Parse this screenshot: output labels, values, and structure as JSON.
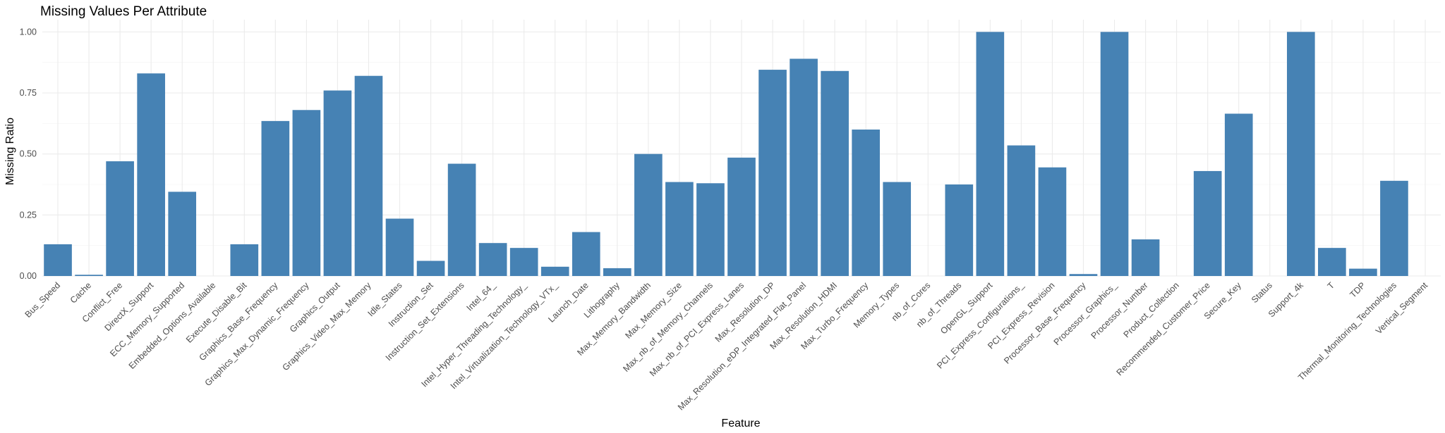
{
  "chart_data": {
    "type": "bar",
    "title": "Missing Values Per Attribute",
    "xlabel": "Feature",
    "ylabel": "Missing Ratio",
    "ylim": [
      0,
      1.05
    ],
    "yticks": [
      "0.00",
      "0.25",
      "0.50",
      "0.75",
      "1.00"
    ],
    "grid": true,
    "bar_color": "#4682b4",
    "categories": [
      "Bus_Speed",
      "Cache",
      "Conflict_Free",
      "DirectX_Support",
      "ECC_Memory_Supported",
      "Embedded_Options_Available",
      "Execute_Disable_Bit",
      "Graphics_Base_Frequency",
      "Graphics_Max_Dynamic_Frequency",
      "Graphics_Output",
      "Graphics_Video_Max_Memory",
      "Idle_States",
      "Instruction_Set",
      "Instruction_Set_Extensions",
      "Intel_64_",
      "Intel_Hyper_Threading_Technology_",
      "Intel_Virtualization_Technology_VTx_",
      "Launch_Date",
      "Lithography",
      "Max_Memory_Bandwidth",
      "Max_Memory_Size",
      "Max_nb_of_Memory_Channels",
      "Max_nb_of_PCI_Express_Lanes",
      "Max_Resolution_DP",
      "Max_Resolution_eDP_Integrated_Flat_Panel",
      "Max_Resolution_HDMI",
      "Max_Turbo_Frequency",
      "Memory_Types",
      "nb_of_Cores",
      "nb_of_Threads",
      "OpenGL_Support",
      "PCI_Express_Configurations_",
      "PCI_Express_Revision",
      "Processor_Base_Frequency",
      "Processor_Graphics_",
      "Processor_Number",
      "Product_Collection",
      "Recommended_Customer_Price",
      "Secure_Key",
      "Status",
      "Support_4k",
      "T",
      "TDP",
      "Thermal_Monitoring_Technologies",
      "Vertical_Segment"
    ],
    "values": [
      0.13,
      0.005,
      0.47,
      0.83,
      0.345,
      0.0,
      0.13,
      0.635,
      0.68,
      0.76,
      0.82,
      0.235,
      0.062,
      0.46,
      0.135,
      0.115,
      0.038,
      0.18,
      0.032,
      0.5,
      0.385,
      0.38,
      0.485,
      0.845,
      0.89,
      0.84,
      0.6,
      0.385,
      0.0,
      0.375,
      1.0,
      0.535,
      0.445,
      0.008,
      1.0,
      0.15,
      0.0,
      0.43,
      0.665,
      0.0,
      1.0,
      0.115,
      0.03,
      0.39,
      0.0
    ]
  }
}
